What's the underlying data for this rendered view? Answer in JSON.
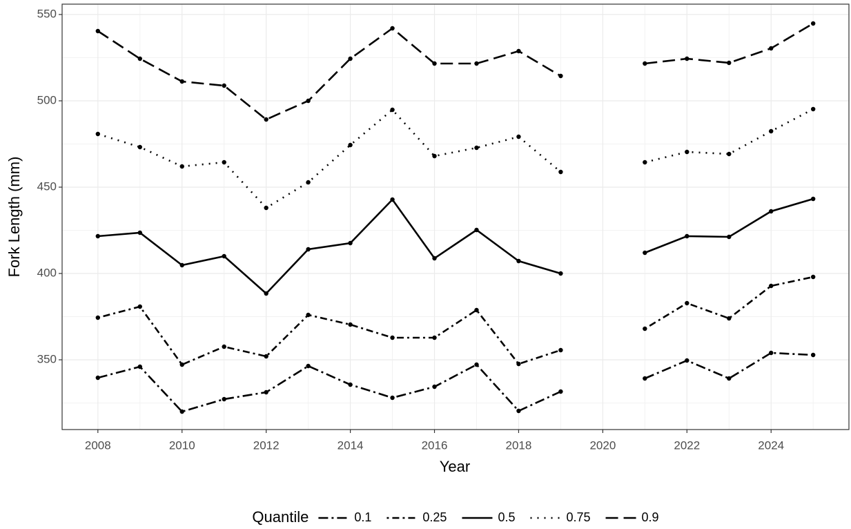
{
  "chart_data": {
    "type": "line",
    "x_label": "Year",
    "y_label": "Fork Length (mm)",
    "legend_title": "Quantile",
    "legend": "bottom",
    "grid": true,
    "x": [
      2008,
      2009,
      2010,
      2011,
      2012,
      2013,
      2014,
      2015,
      2016,
      2017,
      2018,
      2019,
      2020,
      2021,
      2022,
      2023,
      2024,
      2025
    ],
    "xlim": [
      2007.15,
      2025.85
    ],
    "xticks": [
      2008,
      2010,
      2012,
      2014,
      2016,
      2018,
      2020,
      2022,
      2024
    ],
    "ylim": [
      309.6,
      556
    ],
    "yticks": [
      350,
      400,
      450,
      500,
      550
    ],
    "series": [
      {
        "name": "0.1",
        "color": "#000000",
        "dash": "14 5 3 5",
        "values": [
          339.6,
          346,
          320,
          327.2,
          331.2,
          346.4,
          335.6,
          328,
          334.4,
          347.2,
          320.4,
          331.6,
          null,
          339.2,
          349.6,
          339.2,
          354,
          352.8
        ]
      },
      {
        "name": "0.25",
        "color": "#000000",
        "dash": "3 5 10 5",
        "values": [
          374.4,
          380.8,
          347.2,
          357.6,
          352,
          376,
          370.4,
          362.8,
          362.8,
          378.8,
          347.6,
          355.6,
          null,
          368,
          382.8,
          374,
          392.8,
          398
        ]
      },
      {
        "name": "0.5",
        "color": "#000000",
        "dash": "none",
        "values": [
          421.6,
          423.6,
          404.8,
          410,
          388.4,
          414,
          417.6,
          442.8,
          408.8,
          425.2,
          407.2,
          400,
          null,
          412,
          421.6,
          421.2,
          436,
          443.2
        ]
      },
      {
        "name": "0.75",
        "color": "#000000",
        "dash": "2 8",
        "values": [
          480.8,
          473.2,
          462,
          464.4,
          438,
          452.8,
          474.4,
          494.8,
          468,
          472.8,
          479.2,
          458.8,
          null,
          464.4,
          470.4,
          469.2,
          482.4,
          495.2
        ]
      },
      {
        "name": "0.9",
        "color": "#000000",
        "dash": "18 8",
        "values": [
          540.4,
          524.4,
          511.2,
          508.8,
          489.2,
          500,
          524.4,
          542,
          521.6,
          521.6,
          528.8,
          514.4,
          null,
          521.6,
          524.4,
          522,
          530.4,
          544.8
        ]
      }
    ]
  }
}
